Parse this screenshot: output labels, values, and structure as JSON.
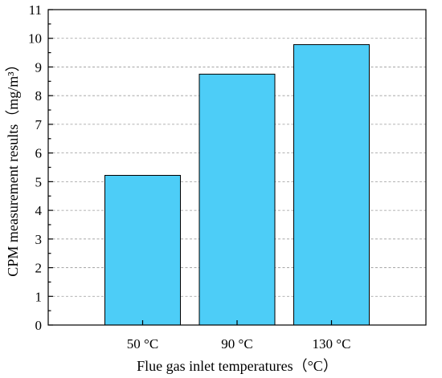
{
  "chart_data": {
    "type": "bar",
    "categories": [
      "50 °C",
      "90 °C",
      "130 °C"
    ],
    "values": [
      5.22,
      8.75,
      9.78
    ],
    "xlabel": "Flue gas inlet temperatures（°C）",
    "ylabel": "CPM measurement results（mg/m³）",
    "ylim": [
      0,
      11
    ],
    "yticks": [
      "0",
      "1",
      "2",
      "3",
      "4",
      "5",
      "6",
      "7",
      "8",
      "9",
      "10",
      "11"
    ],
    "grid": true,
    "bar_color": "#4dcdf7",
    "legend": "none"
  }
}
